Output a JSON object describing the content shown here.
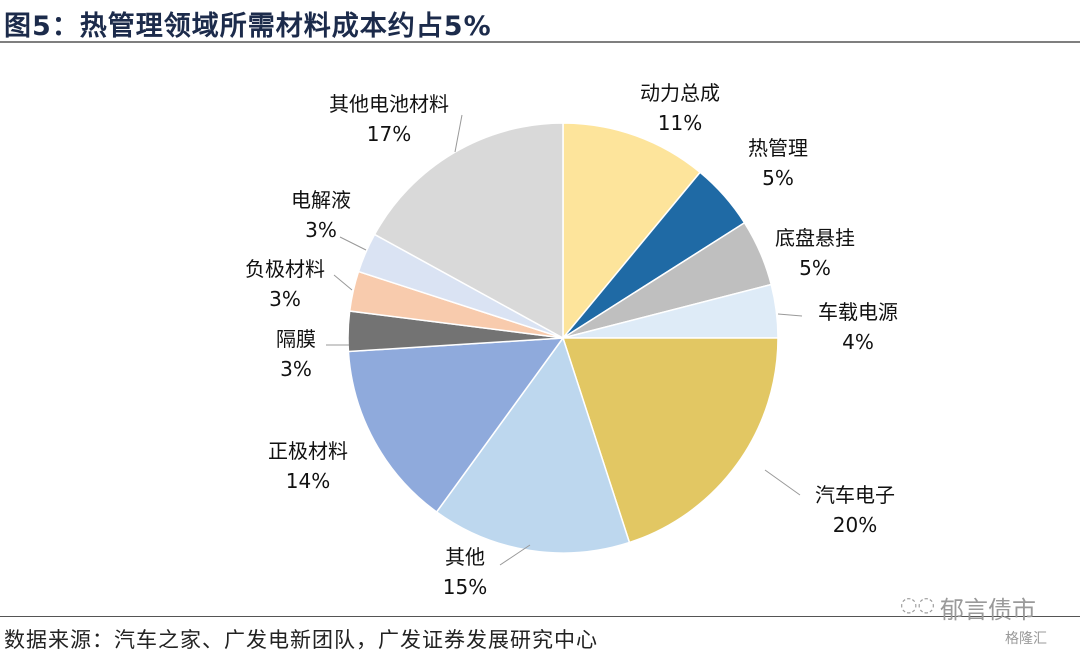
{
  "title": "图5：热管理领域所需材料成本约占5%",
  "source": "数据来源：汽车之家、广发电新团队，广发证券发展研究中心",
  "watermark": {
    "account": "郁言债市",
    "site": "格隆汇"
  },
  "chart_data": {
    "type": "pie",
    "start": "top, clockwise",
    "categories": [
      "动力总成",
      "热管理",
      "底盘悬挂",
      "车载电源",
      "汽车电子",
      "其他",
      "正极材料",
      "隔膜",
      "负极材料",
      "电解液",
      "其他电池材料"
    ],
    "values": [
      11,
      5,
      5,
      4,
      20,
      15,
      14,
      3,
      3,
      3,
      17
    ],
    "labels": [
      "11%",
      "5%",
      "5%",
      "4%",
      "20%",
      "15%",
      "14%",
      "3%",
      "3%",
      "3%",
      "17%"
    ],
    "colors": [
      "#FDE49B",
      "#1F6AA5",
      "#BFBFBF",
      "#DEEBF7",
      "#E2C763",
      "#BDD7EE",
      "#8FAADC",
      "#737373",
      "#F8CBAD",
      "#DAE3F3",
      "#D9D9D9"
    ]
  }
}
